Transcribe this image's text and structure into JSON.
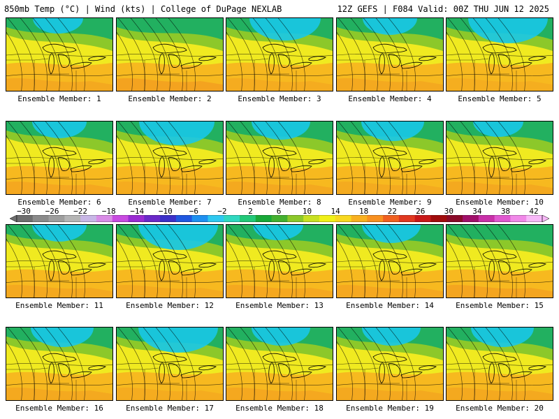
{
  "header": {
    "left": "850mb Temp (°C) | Wind (kts) | College of DuPage NEXLAB",
    "right": "12Z GEFS | F084 Valid: 00Z THU JUN 12 2025"
  },
  "member_label_prefix": "Ensemble Member:",
  "members": [
    1,
    2,
    3,
    4,
    5,
    6,
    7,
    8,
    9,
    10,
    11,
    12,
    13,
    14,
    15,
    16,
    17,
    18,
    19,
    20
  ],
  "colorbar": {
    "labels": [
      "-30",
      "-26",
      "-22",
      "-18",
      "-14",
      "-10",
      "-6",
      "-2",
      "2",
      "6",
      "10",
      "14",
      "18",
      "22",
      "26",
      "30",
      "34",
      "38",
      "42"
    ],
    "colors": [
      "#6e6e6e",
      "#8a8a8a",
      "#9e9e9e",
      "#b5b5b5",
      "#c8b6e6",
      "#d98ce6",
      "#c84be0",
      "#9a2bd2",
      "#6a28c8",
      "#3c30c8",
      "#2058e0",
      "#1e90f0",
      "#2ec8f0",
      "#30d8c0",
      "#22c878",
      "#18a838",
      "#44b030",
      "#8cc82a",
      "#c8e022",
      "#f0f018",
      "#f8d820",
      "#f8b020",
      "#f89020",
      "#f06020",
      "#e03820",
      "#c81818",
      "#a00c0c",
      "#8a0a28",
      "#a0106a",
      "#c830a8",
      "#e058d0",
      "#f088e8",
      "#f8b8f8"
    ]
  },
  "palette": {
    "cold": "#18c8e8",
    "cool": "#22b060",
    "mild": "#8cc82a",
    "warm": "#f0ea20",
    "hot": "#f8b020",
    "hotter": "#f08a20"
  }
}
